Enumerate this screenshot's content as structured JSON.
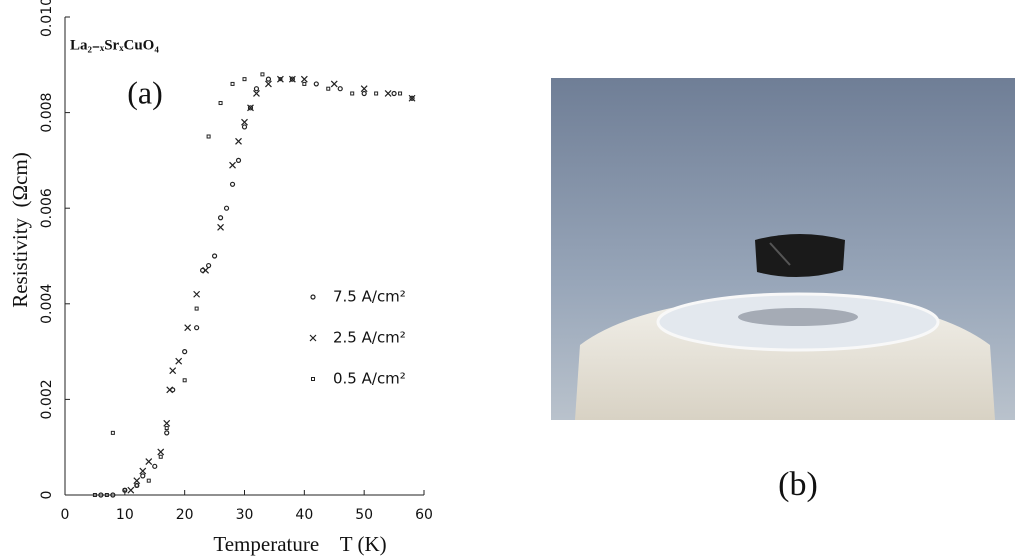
{
  "chart_data": {
    "type": "scatter",
    "title": "La₂₋ₓSrₓCuO₄",
    "panel_labels": [
      "(a)",
      "(b)"
    ],
    "x_label": "Temperature    T (K)",
    "y_label": "Resistivity  (Ωcm)",
    "xlim": [
      0,
      60
    ],
    "xticks": [
      0,
      10,
      20,
      30,
      40,
      50,
      60
    ],
    "ylim": [
      0,
      0.01
    ],
    "yticks": [
      0,
      0.002,
      0.004,
      0.006,
      0.008,
      {
        "value": 0.01,
        "label": "0.010"
      }
    ],
    "series": [
      {
        "name": "7.5 A/cm²",
        "marker": "circle",
        "color": "#222",
        "x": [
          6,
          8,
          10,
          12,
          13,
          15,
          17,
          18,
          20,
          22,
          23,
          24,
          25,
          26,
          27,
          28,
          29,
          30,
          31,
          32,
          34,
          38,
          42,
          46,
          50,
          55,
          58
        ],
        "values": [
          0,
          0,
          0.0001,
          0.0002,
          0.0004,
          0.0006,
          0.0013,
          0.0022,
          0.003,
          0.0035,
          0.0047,
          0.0048,
          0.005,
          0.0058,
          0.006,
          0.0065,
          0.007,
          0.0077,
          0.0081,
          0.0085,
          0.0087,
          0.0087,
          0.0086,
          0.0085,
          0.0084,
          0.0084,
          0.0083
        ]
      },
      {
        "name": "2.5 A/cm²",
        "marker": "x",
        "color": "#222",
        "x": [
          11,
          12,
          13,
          14,
          16,
          17,
          17.5,
          18,
          19,
          20.5,
          22,
          23.5,
          26,
          28,
          29,
          30,
          31,
          32,
          34,
          36,
          38,
          40,
          45,
          50,
          54,
          58
        ],
        "values": [
          0.0001,
          0.0003,
          0.0005,
          0.0007,
          0.0009,
          0.0015,
          0.0022,
          0.0026,
          0.0028,
          0.0035,
          0.0042,
          0.0047,
          0.0056,
          0.0069,
          0.0074,
          0.0078,
          0.0081,
          0.0084,
          0.0086,
          0.0087,
          0.0087,
          0.0087,
          0.0086,
          0.0085,
          0.0084,
          0.0083
        ]
      },
      {
        "name": "0.5 A/cm²",
        "marker": "square",
        "color": "#222",
        "x": [
          5,
          7,
          8,
          10,
          12,
          14,
          16,
          17,
          20,
          22,
          24,
          26,
          28,
          30,
          33,
          36,
          40,
          44,
          48,
          52,
          56
        ],
        "values": [
          0,
          0,
          0.0013,
          0.0001,
          0.0002,
          0.0003,
          0.0008,
          0.0014,
          0.0024,
          0.0039,
          0.0075,
          0.0082,
          0.0086,
          0.0087,
          0.0088,
          0.0087,
          0.0086,
          0.0085,
          0.0084,
          0.0084,
          0.0084
        ]
      }
    ]
  }
}
